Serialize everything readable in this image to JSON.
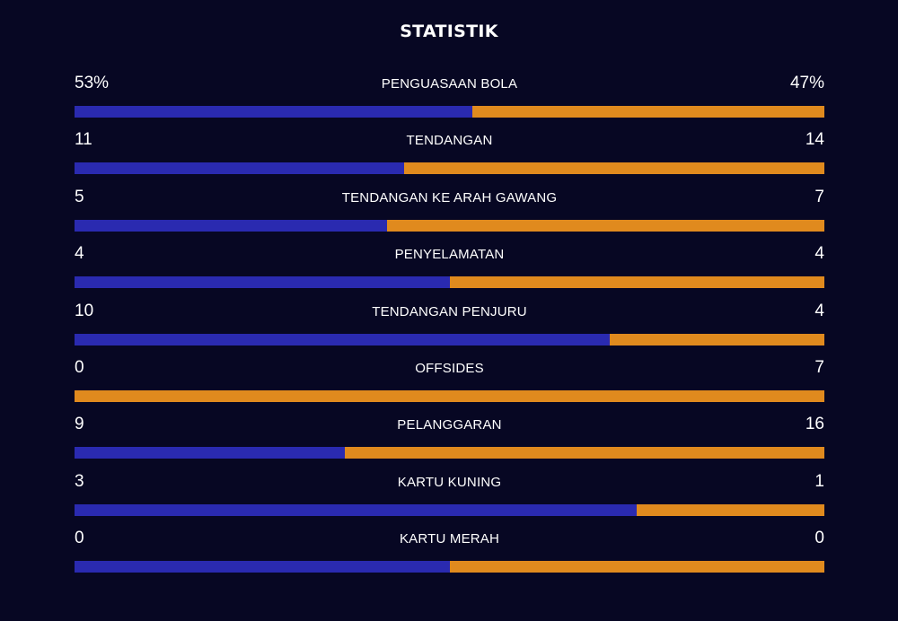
{
  "title": "STATISTIK",
  "colors": {
    "background": "#070723",
    "home": "#2a2ab0",
    "away": "#e08a1e",
    "text": "#ffffff"
  },
  "chart_data": {
    "type": "bar",
    "title": "STATISTIK",
    "orientation": "horizontal-stacked-split",
    "categories": [
      "PENGUASAAN BOLA",
      "TENDANGAN",
      "TENDANGAN KE ARAH GAWANG",
      "PENYELAMATAN",
      "TENDANGAN PENJURU",
      "OFFSIDES",
      "PELANGGARAN",
      "KARTU KUNING",
      "KARTU MERAH"
    ],
    "series": [
      {
        "values": [
          53,
          11,
          5,
          4,
          10,
          0,
          9,
          3,
          0
        ],
        "color": "#2a2ab0"
      },
      {
        "values": [
          47,
          14,
          7,
          4,
          4,
          7,
          16,
          1,
          0
        ],
        "color": "#e08a1e"
      }
    ],
    "display_left": [
      "53%",
      "11",
      "5",
      "4",
      "10",
      "0",
      "9",
      "3",
      "0"
    ],
    "display_right": [
      "47%",
      "14",
      "7",
      "4",
      "4",
      "7",
      "16",
      "1",
      "0"
    ]
  }
}
